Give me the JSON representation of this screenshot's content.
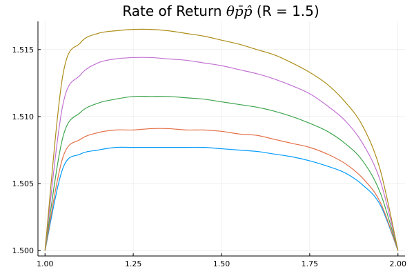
{
  "chart_data": {
    "type": "line",
    "title": "Rate of Return θp̄p̂ (R = 1.5)",
    "title_prefix": "Rate of Return ",
    "title_math": "θp̄p̂",
    "title_suffix": " (R = 1.5)",
    "xlabel": "",
    "ylabel": "",
    "xlim": [
      0.98,
      2.02
    ],
    "ylim": [
      1.4996,
      1.5171
    ],
    "xticks": [
      1.0,
      1.25,
      1.5,
      1.75,
      2.0
    ],
    "xtick_labels": [
      "1.00",
      "1.25",
      "1.50",
      "1.75",
      "2.00"
    ],
    "yticks": [
      1.5,
      1.505,
      1.51,
      1.515
    ],
    "ytick_labels": [
      "1.500",
      "1.505",
      "1.510",
      "1.515"
    ],
    "grid": true,
    "legend": "none",
    "x": [
      1.0,
      1.05,
      1.1,
      1.15,
      1.2,
      1.25,
      1.3,
      1.35,
      1.4,
      1.45,
      1.5,
      1.55,
      1.6,
      1.65,
      1.7,
      1.75,
      1.8,
      1.85,
      1.9,
      1.95,
      2.0
    ],
    "series": [
      {
        "color": "#009AFA",
        "values": [
          1.5,
          1.5061,
          1.5072,
          1.5075,
          1.5077,
          1.5077,
          1.5077,
          1.5077,
          1.5077,
          1.5077,
          1.5076,
          1.5075,
          1.5074,
          1.5072,
          1.507,
          1.5067,
          1.5063,
          1.5058,
          1.5049,
          1.5034,
          1.5
        ]
      },
      {
        "color": "#E36F47",
        "values": [
          1.5,
          1.5069,
          1.5083,
          1.5088,
          1.509,
          1.509,
          1.5091,
          1.5091,
          1.509,
          1.509,
          1.5089,
          1.5087,
          1.5086,
          1.5083,
          1.508,
          1.5077,
          1.5072,
          1.5065,
          1.5054,
          1.5036,
          1.5
        ]
      },
      {
        "color": "#3EA44E",
        "values": [
          1.5,
          1.5084,
          1.5103,
          1.511,
          1.5113,
          1.5115,
          1.5115,
          1.5115,
          1.5114,
          1.5113,
          1.5111,
          1.5109,
          1.5107,
          1.5104,
          1.51,
          1.5095,
          1.5089,
          1.508,
          1.5067,
          1.5043,
          1.5
        ]
      },
      {
        "color": "#C271D2",
        "values": [
          1.5,
          1.5108,
          1.5131,
          1.514,
          1.5143,
          1.5144,
          1.5144,
          1.5143,
          1.5142,
          1.514,
          1.5138,
          1.5135,
          1.5132,
          1.5128,
          1.5123,
          1.5117,
          1.5108,
          1.5097,
          1.508,
          1.5052,
          1.5
        ]
      },
      {
        "color": "#AC8D18",
        "values": [
          1.5,
          1.513,
          1.5155,
          1.5162,
          1.5164,
          1.5165,
          1.5165,
          1.5164,
          1.5162,
          1.516,
          1.5157,
          1.5154,
          1.515,
          1.5146,
          1.514,
          1.5133,
          1.5124,
          1.5111,
          1.5093,
          1.506,
          1.5
        ]
      }
    ]
  }
}
